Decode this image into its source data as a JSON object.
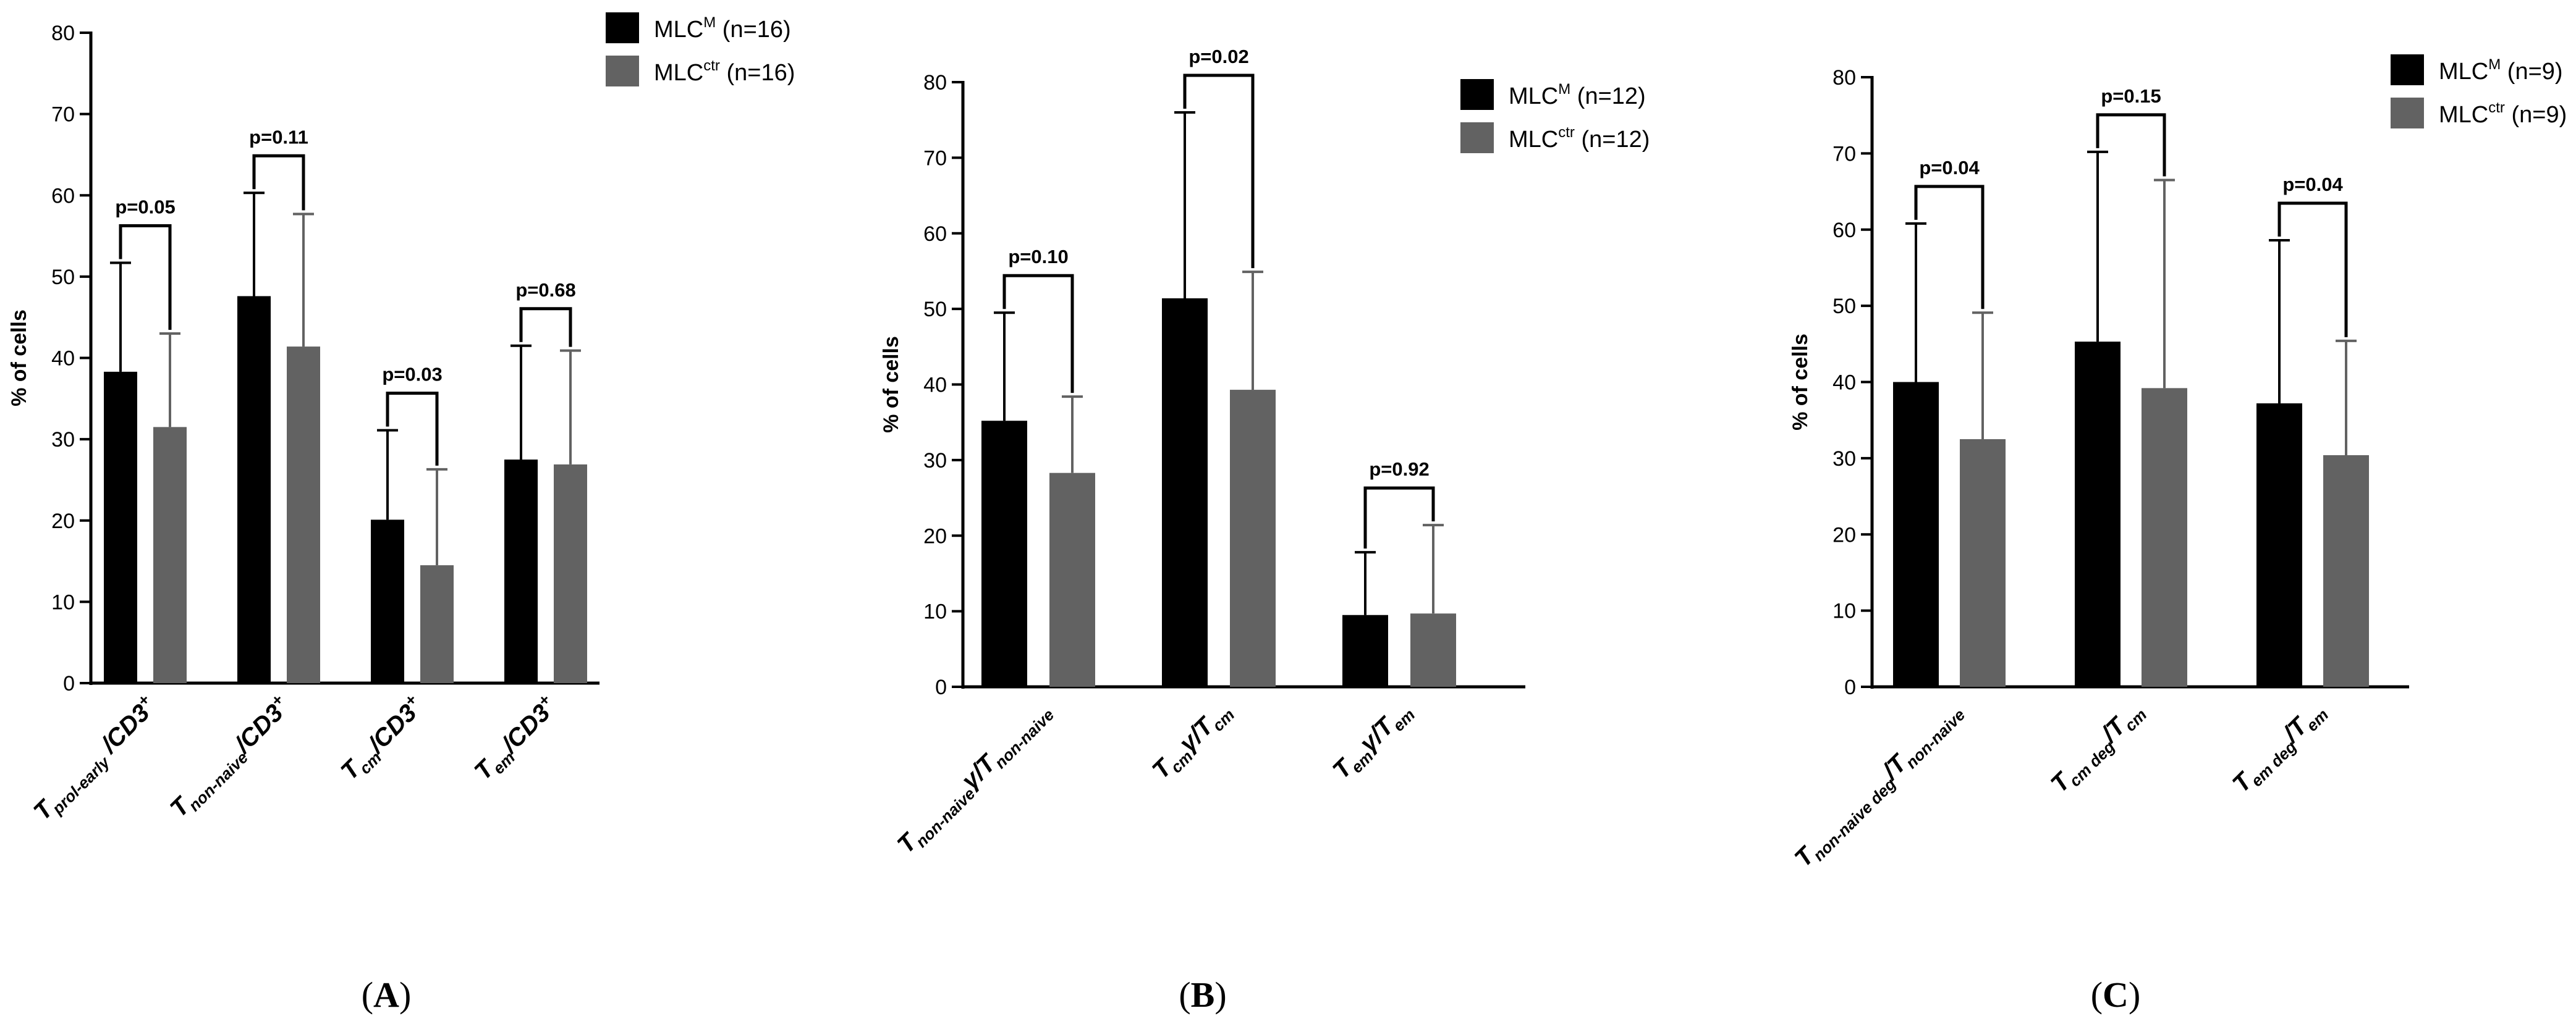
{
  "colors": {
    "mlcm": "#000000",
    "mlcctr": "#626262",
    "axis": "#000000"
  },
  "chart_data": [
    {
      "type": "bar",
      "panel": "(A)",
      "panel_letter": "A",
      "ylabel": "% of cells",
      "ylim": [
        0,
        80
      ],
      "yticks": [
        "0",
        "10",
        "20",
        "30",
        "40",
        "50",
        "60",
        "70",
        "80"
      ],
      "categories": [
        {
          "main": "T",
          "sub": "prol-early",
          "tail": " /CD3",
          "sup": "+"
        },
        {
          "main": "T",
          "sub": "non-naive",
          "tail": "/CD3",
          "sup": "+"
        },
        {
          "main": "T",
          "sub": "cm",
          "tail": "/CD3",
          "sup": "+"
        },
        {
          "main": "T",
          "sub": "em",
          "tail": "/CD3",
          "sup": "+"
        }
      ],
      "series": [
        {
          "name": "MLC",
          "sup": "M",
          "n": " (n=16)",
          "values": [
            38.3,
            47.6,
            20.1,
            27.5
          ],
          "errors": [
            13.4,
            12.7,
            11.0,
            14.0
          ]
        },
        {
          "name": "MLC",
          "sup": "ctr",
          "n": " (n=16)",
          "values": [
            31.5,
            41.4,
            14.5,
            26.9
          ],
          "errors": [
            11.5,
            16.3,
            11.8,
            14.0
          ]
        }
      ],
      "pvalues": [
        "p=0.05",
        "p=0.11",
        "p=0.03",
        "p=0.68"
      ]
    },
    {
      "type": "bar",
      "panel": "(B)",
      "panel_letter": "B",
      "ylabel": "% of cells",
      "ylim": [
        0,
        80
      ],
      "yticks": [
        "0",
        "10",
        "20",
        "30",
        "40",
        "50",
        "60",
        "70",
        "80"
      ],
      "categories": [
        {
          "main": "T",
          "sub": "non-naive",
          "tail": "γ/T",
          "sub2": "non-naive"
        },
        {
          "main": "T",
          "sub": "cm",
          "tail": "γ/T",
          "sub2": "cm"
        },
        {
          "main": "T",
          "sub": "em",
          "tail": "γ/T",
          "sub2": "em"
        }
      ],
      "series": [
        {
          "name": "MLC",
          "sup": "M",
          "n": " (n=12)",
          "values": [
            35.2,
            51.4,
            9.5
          ],
          "errors": [
            14.3,
            24.6,
            8.3
          ]
        },
        {
          "name": "MLC",
          "sup": "ctr",
          "n": " (n=12)",
          "values": [
            28.3,
            39.3,
            9.7
          ],
          "errors": [
            10.1,
            15.6,
            11.7
          ]
        }
      ],
      "pvalues": [
        "p=0.10",
        "p=0.02",
        "p=0.92"
      ]
    },
    {
      "type": "bar",
      "panel": "(C)",
      "panel_letter": "C",
      "ylabel": "% of cells",
      "ylim": [
        0,
        80
      ],
      "yticks": [
        "0",
        "10",
        "20",
        "30",
        "40",
        "50",
        "60",
        "70",
        "80"
      ],
      "categories": [
        {
          "main": "T",
          "sub": "non-naive deg",
          "tail": "/T",
          "sub2": "non-naive"
        },
        {
          "main": "T",
          "sub": "cm deg",
          "tail": "/T",
          "sub2": "cm"
        },
        {
          "main": "T",
          "sub": "em deg",
          "tail": "/T",
          "sub2": "em"
        }
      ],
      "series": [
        {
          "name": "MLC",
          "sup": "M",
          "n": " (n=9)",
          "values": [
            40.0,
            45.3,
            37.2
          ],
          "errors": [
            20.8,
            24.9,
            21.4
          ]
        },
        {
          "name": "MLC",
          "sup": "ctr",
          "n": " (n=9)",
          "values": [
            32.5,
            39.2,
            30.4
          ],
          "errors": [
            16.6,
            27.3,
            15.0
          ]
        }
      ],
      "pvalues": [
        "p=0.04",
        "p=0.15",
        "p=0.04"
      ]
    }
  ]
}
